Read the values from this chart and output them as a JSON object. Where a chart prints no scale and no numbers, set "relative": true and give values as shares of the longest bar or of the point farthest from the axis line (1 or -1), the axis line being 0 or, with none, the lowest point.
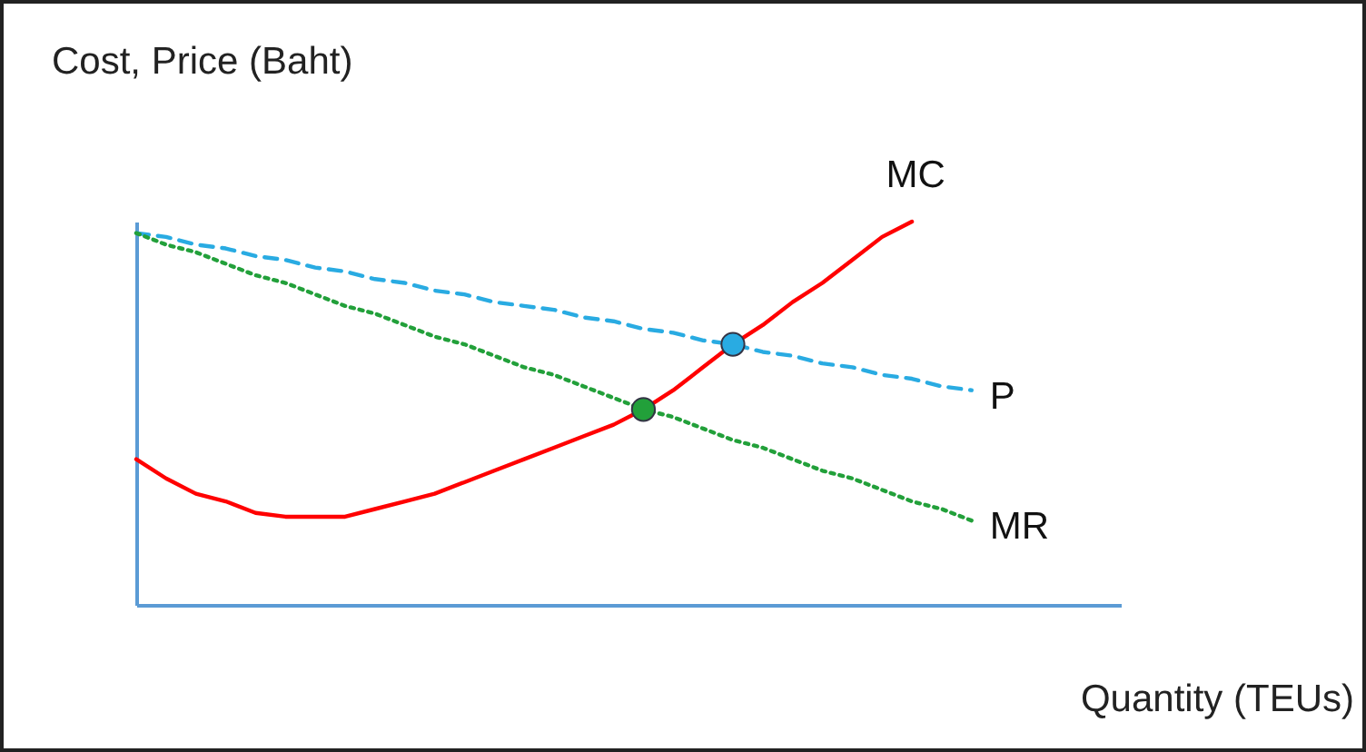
{
  "chart_data": {
    "type": "line",
    "xlabel": "Quantity (TEUs)",
    "ylabel": "Cost, Price (Baht)",
    "relative": true,
    "grid": false,
    "categories": [
      null,
      null,
      null,
      null,
      null,
      null,
      null,
      null,
      null,
      null,
      null,
      null,
      null,
      null,
      null,
      null,
      null,
      null,
      null,
      null,
      null,
      null,
      null,
      null,
      null,
      null,
      null,
      null,
      null,
      null,
      null,
      null,
      null,
      null
    ],
    "series": [
      {
        "name": "MC",
        "color": "#ff0000",
        "line_style": "solid",
        "values": [
          0.38,
          0.33,
          0.29,
          0.27,
          0.24,
          0.23,
          0.23,
          0.23,
          0.25,
          0.27,
          0.29,
          0.32,
          0.35,
          0.38,
          0.41,
          0.44,
          0.47,
          0.51,
          0.56,
          0.62,
          0.68,
          0.73,
          0.79,
          0.84,
          0.9,
          0.96,
          1.0,
          null,
          null,
          null,
          null,
          null,
          null,
          null
        ]
      },
      {
        "name": "P",
        "color": "#29abe2",
        "line_style": "dashed",
        "values": [
          0.97,
          0.96,
          0.94,
          0.93,
          0.91,
          0.9,
          0.88,
          0.87,
          0.85,
          0.84,
          0.82,
          0.81,
          0.79,
          0.78,
          0.77,
          0.75,
          0.74,
          0.72,
          0.71,
          0.69,
          0.68,
          0.66,
          0.65,
          0.63,
          0.62,
          0.6,
          0.59,
          0.57,
          0.56,
          null,
          null,
          null,
          null,
          null
        ]
      },
      {
        "name": "MR",
        "color": "#22a03a",
        "line_style": "dotted",
        "values": [
          0.97,
          0.94,
          0.92,
          0.89,
          0.86,
          0.84,
          0.81,
          0.78,
          0.76,
          0.73,
          0.7,
          0.68,
          0.65,
          0.62,
          0.6,
          0.57,
          0.54,
          0.51,
          0.49,
          0.46,
          0.43,
          0.41,
          0.38,
          0.35,
          0.33,
          0.3,
          0.27,
          0.25,
          0.22,
          null,
          null,
          null,
          null,
          null
        ]
      },
      {
        "color": "#22a03a",
        "marker": "circle",
        "values": [
          null,
          null,
          null,
          null,
          null,
          null,
          null,
          null,
          null,
          null,
          null,
          null,
          null,
          null,
          null,
          null,
          null,
          0.51,
          null,
          null,
          null,
          null,
          null,
          null,
          null,
          null,
          null,
          null,
          null,
          null,
          null,
          null,
          null,
          null
        ]
      },
      {
        "color": "#29abe2",
        "marker": "circle",
        "values": [
          null,
          null,
          null,
          null,
          null,
          null,
          null,
          null,
          null,
          null,
          null,
          null,
          null,
          null,
          null,
          null,
          null,
          null,
          null,
          null,
          0.68,
          null,
          null,
          null,
          null,
          null,
          null,
          null,
          null,
          null,
          null,
          null,
          null,
          null
        ]
      }
    ]
  }
}
